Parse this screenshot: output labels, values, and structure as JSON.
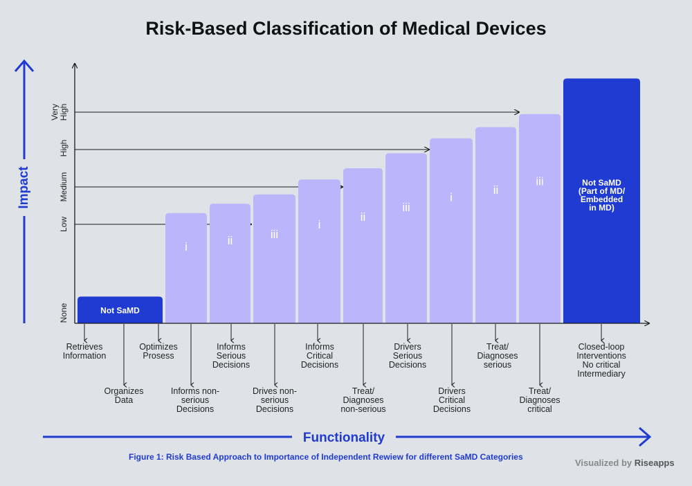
{
  "title": "Risk-Based Classification of Medical Devices",
  "caption": "Figure 1: Risk Based Approach to Importance of Independent Rewiew for different SaMD Categories",
  "credit": {
    "prefix": "Visualized by ",
    "brand": "Riseapps"
  },
  "axes": {
    "x_title": "Functionality",
    "y_title": "Impact"
  },
  "impact_levels": [
    {
      "label_lines": [
        "None"
      ]
    },
    {
      "label_lines": [
        "Low"
      ]
    },
    {
      "label_lines": [
        "Medium"
      ]
    },
    {
      "label_lines": [
        "High"
      ]
    },
    {
      "label_lines": [
        "Very",
        "High"
      ]
    }
  ],
  "categories": [
    {
      "id": "not-samd",
      "label_lines": [
        "Not SaMD"
      ],
      "style": "dark",
      "level": 0.27
    },
    {
      "id": "informs-non-serious",
      "label_lines": [
        "i"
      ],
      "style": "light",
      "level": 1.3
    },
    {
      "id": "informs-serious",
      "label_lines": [
        "ii"
      ],
      "style": "light",
      "level": 1.55
    },
    {
      "id": "drives-non-serious",
      "label_lines": [
        "iii"
      ],
      "style": "light",
      "level": 1.8
    },
    {
      "id": "informs-critical",
      "label_lines": [
        "i"
      ],
      "style": "light",
      "level": 2.2
    },
    {
      "id": "treat-non-serious",
      "label_lines": [
        "ii"
      ],
      "style": "light",
      "level": 2.5
    },
    {
      "id": "drivers-serious",
      "label_lines": [
        "iii"
      ],
      "style": "light",
      "level": 2.9
    },
    {
      "id": "drivers-critical",
      "label_lines": [
        "i"
      ],
      "style": "light",
      "level": 3.3
    },
    {
      "id": "treat-serious",
      "label_lines": [
        "ii"
      ],
      "style": "light",
      "level": 3.6
    },
    {
      "id": "treat-critical",
      "label_lines": [
        "iii"
      ],
      "style": "light",
      "level": 3.95
    },
    {
      "id": "not-samd-md",
      "label_lines": [
        "Not SaMD",
        "(Part of MD/",
        "Embedded",
        "in MD)"
      ],
      "style": "dark",
      "level": 4.9
    }
  ],
  "functionality_labels": [
    {
      "id": "retrieves",
      "lines": [
        "Retrieves",
        "Information"
      ]
    },
    {
      "id": "organizes",
      "lines": [
        "Organizes",
        "Data"
      ]
    },
    {
      "id": "optimizes",
      "lines": [
        "Optimizes",
        "Prosess"
      ]
    },
    {
      "id": "informs-non-serious",
      "lines": [
        "Informs non-",
        "serious",
        "Decisions"
      ]
    },
    {
      "id": "informs-serious",
      "lines": [
        "Informs",
        "Serious",
        "Decisions"
      ]
    },
    {
      "id": "drives-non-serious",
      "lines": [
        "Drives non-",
        "serious",
        "Decisions"
      ]
    },
    {
      "id": "informs-critical",
      "lines": [
        "Informs",
        "Critical",
        "Decisions"
      ]
    },
    {
      "id": "treat-non-serious",
      "lines": [
        "Treat/",
        "Diagnoses",
        "non-serious"
      ]
    },
    {
      "id": "drivers-serious",
      "lines": [
        "Drivers",
        "Serious",
        "Decisions"
      ]
    },
    {
      "id": "drivers-critical",
      "lines": [
        "Drivers",
        "Critical",
        "Decisions"
      ]
    },
    {
      "id": "treat-serious",
      "lines": [
        "Treat/",
        "Diagnoses",
        "serious"
      ]
    },
    {
      "id": "treat-critical",
      "lines": [
        "Treat/",
        "Diagnoses",
        "critical"
      ]
    },
    {
      "id": "closed-loop",
      "lines": [
        "Closed-loop",
        "Interventions",
        "No critical",
        "Intermediary"
      ]
    }
  ],
  "colors": {
    "dark_bar": "#1f3bd1",
    "light_bar": "#bbb6fb",
    "axis": "#1a1a1a",
    "accent": "#1f3bd1",
    "background": "#dfe3e7"
  }
}
